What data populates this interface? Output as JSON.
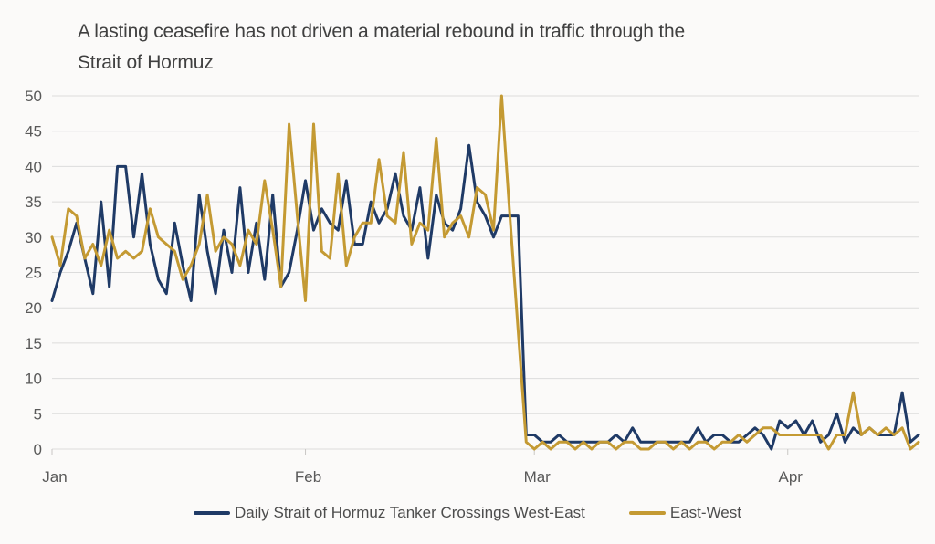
{
  "title_lines": [
    "A lasting ceasefire has not driven a material rebound in traffic through the",
    "Strait of Hormuz"
  ],
  "colors": {
    "background": "#fbfaf9",
    "title_text": "#404040",
    "axis_text": "#595959",
    "legend_text": "#4d4d4d",
    "gridline": "#dcdcdc",
    "tick": "#c9c7c5",
    "west_east_line": "#1f3a66",
    "east_west_line": "#c49a33"
  },
  "chart_data": {
    "type": "line",
    "title": "A lasting ceasefire has not driven a material rebound in traffic through the Strait of Hormuz",
    "xlabel": "",
    "ylabel": "",
    "ylim": [
      0,
      50
    ],
    "ytick_step": 5,
    "ytick_labels": [
      "0",
      "5",
      "10",
      "15",
      "20",
      "25",
      "30",
      "35",
      "40",
      "45",
      "50"
    ],
    "grid": true,
    "legend_position": "bottom",
    "x_unit": "day",
    "month_ticks": [
      {
        "label": "Jan",
        "index": 0
      },
      {
        "label": "Feb",
        "index": 31
      },
      {
        "label": "Mar",
        "index": 59
      },
      {
        "label": "Apr",
        "index": 90
      }
    ],
    "series": [
      {
        "name": "Daily Strait of Hormuz Tanker Crossings West-East",
        "color": "#1f3a66",
        "values": [
          21,
          25,
          28,
          32,
          27,
          22,
          35,
          23,
          40,
          40,
          30,
          39,
          29,
          24,
          22,
          32,
          26,
          21,
          36,
          28,
          22,
          31,
          25,
          37,
          25,
          32,
          24,
          36,
          23,
          25,
          31,
          38,
          31,
          34,
          32,
          31,
          38,
          29,
          29,
          35,
          32,
          34,
          39,
          33,
          31,
          37,
          27,
          36,
          32,
          31,
          34,
          43,
          35,
          33,
          30,
          33,
          33,
          33,
          2,
          2,
          1,
          1,
          2,
          1,
          1,
          1,
          1,
          1,
          1,
          2,
          1,
          3,
          1,
          1,
          1,
          1,
          1,
          1,
          1,
          3,
          1,
          2,
          2,
          1,
          1,
          2,
          3,
          2,
          0,
          4,
          3,
          4,
          2,
          4,
          1,
          2,
          5,
          1,
          3,
          2,
          3,
          2,
          2,
          2,
          8,
          1,
          2
        ]
      },
      {
        "name": "East-West",
        "color": "#c49a33",
        "values": [
          30,
          26,
          34,
          33,
          27,
          29,
          26,
          31,
          27,
          28,
          27,
          28,
          34,
          30,
          29,
          28,
          24,
          26,
          29,
          36,
          28,
          30,
          29,
          26,
          31,
          29,
          38,
          31,
          23,
          46,
          33,
          21,
          46,
          28,
          27,
          39,
          26,
          30,
          32,
          32,
          41,
          33,
          32,
          42,
          29,
          32,
          31,
          44,
          30,
          32,
          33,
          30,
          37,
          36,
          31,
          50,
          33,
          17,
          1,
          0,
          1,
          0,
          1,
          1,
          0,
          1,
          0,
          1,
          1,
          0,
          1,
          1,
          0,
          0,
          1,
          1,
          0,
          1,
          0,
          1,
          1,
          0,
          1,
          1,
          2,
          1,
          2,
          3,
          3,
          2,
          2,
          2,
          2,
          2,
          2,
          0,
          2,
          2,
          8,
          2,
          3,
          2,
          3,
          2,
          3,
          0,
          1
        ]
      }
    ]
  }
}
